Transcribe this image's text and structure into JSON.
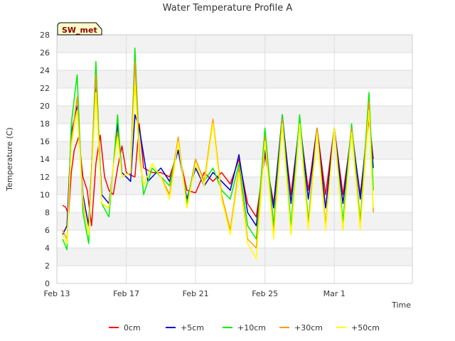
{
  "chart_data": {
    "type": "line",
    "title": "Water Temperature Profile A",
    "xlabel": "Time",
    "ylabel": "Temperature (C)",
    "station_badge": "SW_met",
    "x_unit": "date",
    "x_range": [
      "2023-02-13",
      "2023-03-05T12:00"
    ],
    "x_ticks": [
      {
        "date": "2023-02-13",
        "label": "Feb 13"
      },
      {
        "date": "2023-02-17",
        "label": "Feb 17"
      },
      {
        "date": "2023-02-21",
        "label": "Feb 21"
      },
      {
        "date": "2023-02-25",
        "label": "Feb 25"
      },
      {
        "date": "2023-03-01",
        "label": "Mar 1"
      }
    ],
    "ylim": [
      0,
      28
    ],
    "y_ticks": [
      0,
      2,
      4,
      6,
      8,
      10,
      12,
      14,
      16,
      18,
      20,
      22,
      24,
      26,
      28
    ],
    "grid": true,
    "banded_background": true,
    "legend_position": "bottom",
    "series": [
      {
        "name": "0cm",
        "color": "#ff0000",
        "points": [
          [
            "2023-02-13T08:00",
            8.8
          ],
          [
            "2023-02-13T12:00",
            8.6
          ],
          [
            "2023-02-13T16:00",
            7.8
          ],
          [
            "2023-02-13T20:00",
            12.5
          ],
          [
            "2023-02-14T00:00",
            15.0
          ],
          [
            "2023-02-14T06:00",
            16.5
          ],
          [
            "2023-02-14T12:00",
            12.0
          ],
          [
            "2023-02-14T18:00",
            10.5
          ],
          [
            "2023-02-15T00:00",
            6.5
          ],
          [
            "2023-02-15T06:00",
            13.5
          ],
          [
            "2023-02-15T12:00",
            16.7
          ],
          [
            "2023-02-15T18:00",
            12.0
          ],
          [
            "2023-02-16T00:00",
            10.5
          ],
          [
            "2023-02-16T06:00",
            10.0
          ],
          [
            "2023-02-16T12:00",
            13.0
          ],
          [
            "2023-02-16T18:00",
            15.5
          ],
          [
            "2023-02-17T00:00",
            12.5
          ],
          [
            "2023-02-17T06:00",
            12.2
          ],
          [
            "2023-02-17T12:00",
            12.0
          ],
          [
            "2023-02-17T18:00",
            18.0
          ],
          [
            "2023-02-18T00:00",
            13.0
          ],
          [
            "2023-02-18T12:00",
            12.5
          ],
          [
            "2023-02-19T00:00",
            12.5
          ],
          [
            "2023-02-19T12:00",
            12.0
          ],
          [
            "2023-02-20T00:00",
            15.0
          ],
          [
            "2023-02-20T12:00",
            10.5
          ],
          [
            "2023-02-21T00:00",
            10.2
          ],
          [
            "2023-02-21T12:00",
            12.5
          ],
          [
            "2023-02-22T00:00",
            11.5
          ],
          [
            "2023-02-22T12:00",
            12.5
          ],
          [
            "2023-02-23T00:00",
            11.2
          ],
          [
            "2023-02-23T12:00",
            14.0
          ],
          [
            "2023-02-24T00:00",
            9.0
          ],
          [
            "2023-02-24T12:00",
            7.5
          ],
          [
            "2023-02-25T00:00",
            14.5
          ],
          [
            "2023-02-25T12:00",
            9.0
          ],
          [
            "2023-02-26T00:00",
            18.5
          ],
          [
            "2023-02-26T12:00",
            10.0
          ],
          [
            "2023-02-27T00:00",
            18.0
          ],
          [
            "2023-02-27T12:00",
            10.5
          ],
          [
            "2023-02-28T00:00",
            17.5
          ],
          [
            "2023-02-28T12:00",
            10.0
          ],
          [
            "2023-03-01T00:00",
            17.5
          ],
          [
            "2023-03-01T12:00",
            10.0
          ],
          [
            "2023-03-02T00:00",
            17.0
          ],
          [
            "2023-03-02T12:00",
            10.0
          ],
          [
            "2023-03-03T00:00",
            18.5
          ],
          [
            "2023-03-03T06:00",
            14.0
          ]
        ]
      },
      {
        "name": "+5cm",
        "color": "#0000cc",
        "points": [
          [
            "2023-02-13T08:00",
            5.5
          ],
          [
            "2023-02-13T14:00",
            6.5
          ],
          [
            "2023-02-13T20:00",
            17.0
          ],
          [
            "2023-02-14T04:00",
            20.0
          ],
          [
            "2023-02-14T12:00",
            10.0
          ],
          [
            "2023-02-14T20:00",
            6.5
          ],
          [
            "2023-02-15T06:00",
            22.5
          ],
          [
            "2023-02-15T14:00",
            10.0
          ],
          [
            "2023-02-16T00:00",
            9.0
          ],
          [
            "2023-02-16T06:00",
            13.0
          ],
          [
            "2023-02-16T12:00",
            18.0
          ],
          [
            "2023-02-16T18:00",
            12.5
          ],
          [
            "2023-02-17T06:00",
            11.5
          ],
          [
            "2023-02-17T12:00",
            19.0
          ],
          [
            "2023-02-17T18:00",
            17.5
          ],
          [
            "2023-02-18T06:00",
            11.5
          ],
          [
            "2023-02-18T12:00",
            12.0
          ],
          [
            "2023-02-19T00:00",
            13.0
          ],
          [
            "2023-02-19T12:00",
            11.5
          ],
          [
            "2023-02-20T00:00",
            15.0
          ],
          [
            "2023-02-20T12:00",
            9.5
          ],
          [
            "2023-02-21T00:00",
            13.0
          ],
          [
            "2023-02-21T12:00",
            11.0
          ],
          [
            "2023-02-22T00:00",
            12.5
          ],
          [
            "2023-02-22T12:00",
            11.5
          ],
          [
            "2023-02-23T00:00",
            10.5
          ],
          [
            "2023-02-23T12:00",
            14.5
          ],
          [
            "2023-02-24T00:00",
            8.0
          ],
          [
            "2023-02-24T12:00",
            6.5
          ],
          [
            "2023-02-25T00:00",
            15.0
          ],
          [
            "2023-02-25T12:00",
            8.5
          ],
          [
            "2023-02-26T00:00",
            19.0
          ],
          [
            "2023-02-26T12:00",
            9.0
          ],
          [
            "2023-02-27T00:00",
            18.5
          ],
          [
            "2023-02-27T12:00",
            9.5
          ],
          [
            "2023-02-28T00:00",
            17.5
          ],
          [
            "2023-02-28T12:00",
            8.5
          ],
          [
            "2023-03-01T00:00",
            17.5
          ],
          [
            "2023-03-01T12:00",
            9.0
          ],
          [
            "2023-03-02T00:00",
            17.5
          ],
          [
            "2023-03-02T12:00",
            9.5
          ],
          [
            "2023-03-03T00:00",
            19.5
          ],
          [
            "2023-03-03T06:00",
            13.0
          ]
        ]
      },
      {
        "name": "+10cm",
        "color": "#00ee00",
        "points": [
          [
            "2023-02-13T08:00",
            5.0
          ],
          [
            "2023-02-13T14:00",
            3.8
          ],
          [
            "2023-02-13T20:00",
            18.0
          ],
          [
            "2023-02-14T04:00",
            23.5
          ],
          [
            "2023-02-14T12:00",
            8.0
          ],
          [
            "2023-02-14T20:00",
            4.5
          ],
          [
            "2023-02-15T06:00",
            25.0
          ],
          [
            "2023-02-15T14:00",
            9.0
          ],
          [
            "2023-02-16T00:00",
            7.5
          ],
          [
            "2023-02-16T06:00",
            13.0
          ],
          [
            "2023-02-16T12:00",
            19.0
          ],
          [
            "2023-02-16T18:00",
            12.0
          ],
          [
            "2023-02-17T06:00",
            12.5
          ],
          [
            "2023-02-17T12:00",
            26.5
          ],
          [
            "2023-02-17T18:00",
            15.0
          ],
          [
            "2023-02-18T00:00",
            10.0
          ],
          [
            "2023-02-18T12:00",
            13.0
          ],
          [
            "2023-02-19T00:00",
            12.0
          ],
          [
            "2023-02-19T12:00",
            11.0
          ],
          [
            "2023-02-20T00:00",
            16.0
          ],
          [
            "2023-02-20T12:00",
            9.0
          ],
          [
            "2023-02-21T00:00",
            14.0
          ],
          [
            "2023-02-21T12:00",
            11.5
          ],
          [
            "2023-02-22T00:00",
            13.0
          ],
          [
            "2023-02-22T12:00",
            10.5
          ],
          [
            "2023-02-23T00:00",
            9.5
          ],
          [
            "2023-02-23T12:00",
            13.5
          ],
          [
            "2023-02-24T00:00",
            6.5
          ],
          [
            "2023-02-24T12:00",
            5.0
          ],
          [
            "2023-02-25T00:00",
            17.5
          ],
          [
            "2023-02-25T12:00",
            6.5
          ],
          [
            "2023-02-26T00:00",
            19.0
          ],
          [
            "2023-02-26T12:00",
            6.5
          ],
          [
            "2023-02-27T00:00",
            19.0
          ],
          [
            "2023-02-27T12:00",
            7.0
          ],
          [
            "2023-02-28T00:00",
            17.5
          ],
          [
            "2023-02-28T12:00",
            6.5
          ],
          [
            "2023-03-01T00:00",
            17.5
          ],
          [
            "2023-03-01T12:00",
            7.0
          ],
          [
            "2023-03-02T00:00",
            18.0
          ],
          [
            "2023-03-02T12:00",
            7.0
          ],
          [
            "2023-03-03T00:00",
            21.5
          ],
          [
            "2023-03-03T06:00",
            10.5
          ]
        ]
      },
      {
        "name": "+30cm",
        "color": "#ff9900",
        "points": [
          [
            "2023-02-13T08:00",
            6.0
          ],
          [
            "2023-02-13T14:00",
            5.0
          ],
          [
            "2023-02-13T20:00",
            16.0
          ],
          [
            "2023-02-14T04:00",
            21.0
          ],
          [
            "2023-02-14T12:00",
            9.0
          ],
          [
            "2023-02-14T20:00",
            5.5
          ],
          [
            "2023-02-15T06:00",
            23.5
          ],
          [
            "2023-02-15T14:00",
            9.0
          ],
          [
            "2023-02-16T00:00",
            8.5
          ],
          [
            "2023-02-16T06:00",
            13.0
          ],
          [
            "2023-02-16T12:00",
            17.0
          ],
          [
            "2023-02-16T18:00",
            12.0
          ],
          [
            "2023-02-17T06:00",
            12.5
          ],
          [
            "2023-02-17T12:00",
            25.0
          ],
          [
            "2023-02-17T18:00",
            14.5
          ],
          [
            "2023-02-18T00:00",
            11.0
          ],
          [
            "2023-02-18T12:00",
            13.5
          ],
          [
            "2023-02-19T00:00",
            12.0
          ],
          [
            "2023-02-19T12:00",
            10.0
          ],
          [
            "2023-02-20T00:00",
            16.5
          ],
          [
            "2023-02-20T12:00",
            8.5
          ],
          [
            "2023-02-21T00:00",
            14.0
          ],
          [
            "2023-02-21T12:00",
            11.5
          ],
          [
            "2023-02-22T00:00",
            18.5
          ],
          [
            "2023-02-22T12:00",
            10.0
          ],
          [
            "2023-02-23T00:00",
            6.0
          ],
          [
            "2023-02-23T12:00",
            13.0
          ],
          [
            "2023-02-24T00:00",
            5.0
          ],
          [
            "2023-02-24T12:00",
            4.0
          ],
          [
            "2023-02-25T00:00",
            16.5
          ],
          [
            "2023-02-25T12:00",
            5.5
          ],
          [
            "2023-02-26T00:00",
            18.5
          ],
          [
            "2023-02-26T12:00",
            5.5
          ],
          [
            "2023-02-27T00:00",
            18.0
          ],
          [
            "2023-02-27T12:00",
            6.5
          ],
          [
            "2023-02-28T00:00",
            17.5
          ],
          [
            "2023-02-28T12:00",
            6.5
          ],
          [
            "2023-03-01T00:00",
            17.5
          ],
          [
            "2023-03-01T12:00",
            6.0
          ],
          [
            "2023-03-02T00:00",
            17.5
          ],
          [
            "2023-03-02T12:00",
            6.5
          ],
          [
            "2023-03-03T00:00",
            20.5
          ],
          [
            "2023-03-03T06:00",
            8.0
          ]
        ]
      },
      {
        "name": "+50cm",
        "color": "#ffff00",
        "points": [
          [
            "2023-02-13T08:00",
            5.5
          ],
          [
            "2023-02-13T14:00",
            4.5
          ],
          [
            "2023-02-13T20:00",
            15.5
          ],
          [
            "2023-02-14T04:00",
            19.5
          ],
          [
            "2023-02-14T12:00",
            9.5
          ],
          [
            "2023-02-14T20:00",
            5.5
          ],
          [
            "2023-02-15T06:00",
            21.5
          ],
          [
            "2023-02-15T14:00",
            9.0
          ],
          [
            "2023-02-16T00:00",
            8.5
          ],
          [
            "2023-02-16T06:00",
            13.0
          ],
          [
            "2023-02-16T12:00",
            16.5
          ],
          [
            "2023-02-16T18:00",
            12.0
          ],
          [
            "2023-02-17T06:00",
            12.5
          ],
          [
            "2023-02-17T12:00",
            22.5
          ],
          [
            "2023-02-17T18:00",
            14.0
          ],
          [
            "2023-02-18T00:00",
            11.0
          ],
          [
            "2023-02-18T12:00",
            13.5
          ],
          [
            "2023-02-19T00:00",
            12.0
          ],
          [
            "2023-02-19T12:00",
            9.5
          ],
          [
            "2023-02-20T00:00",
            16.0
          ],
          [
            "2023-02-20T12:00",
            8.5
          ],
          [
            "2023-02-21T00:00",
            13.5
          ],
          [
            "2023-02-21T12:00",
            11.0
          ],
          [
            "2023-02-22T00:00",
            18.0
          ],
          [
            "2023-02-22T12:00",
            9.5
          ],
          [
            "2023-02-23T00:00",
            5.5
          ],
          [
            "2023-02-23T12:00",
            12.5
          ],
          [
            "2023-02-24T00:00",
            4.5
          ],
          [
            "2023-02-24T12:00",
            2.8
          ],
          [
            "2023-02-25T00:00",
            16.0
          ],
          [
            "2023-02-25T12:00",
            5.0
          ],
          [
            "2023-02-26T00:00",
            18.0
          ],
          [
            "2023-02-26T12:00",
            5.5
          ],
          [
            "2023-02-27T00:00",
            18.0
          ],
          [
            "2023-02-27T12:00",
            6.0
          ],
          [
            "2023-02-28T00:00",
            17.0
          ],
          [
            "2023-02-28T12:00",
            6.0
          ],
          [
            "2023-03-01T00:00",
            17.5
          ],
          [
            "2023-03-01T12:00",
            6.0
          ],
          [
            "2023-03-02T00:00",
            17.0
          ],
          [
            "2023-03-02T12:00",
            6.0
          ],
          [
            "2023-03-03T00:00",
            19.5
          ],
          [
            "2023-03-03T06:00",
            8.5
          ]
        ]
      }
    ]
  }
}
